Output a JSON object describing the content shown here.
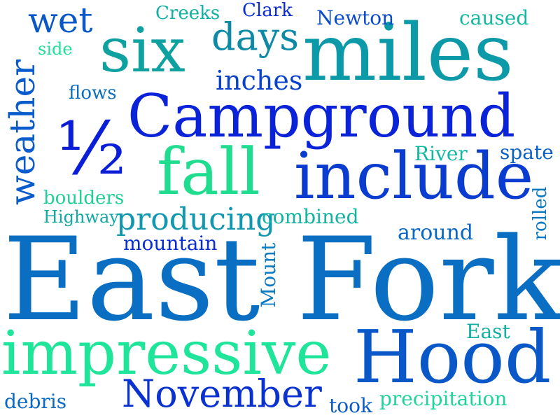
{
  "words": {
    "east_fork": {
      "text": "East Fork",
      "color": "#0a6fc2"
    },
    "impressive": {
      "text": "impressive",
      "color": "#1ee59a"
    },
    "hood": {
      "text": "Hood",
      "color": "#0a58c8"
    },
    "campground": {
      "text": "Campground",
      "color": "#0a22d8"
    },
    "miles": {
      "text": "miles",
      "color": "#0d9aa8"
    },
    "six": {
      "text": "six",
      "color": "#0fa0a0"
    },
    "include": {
      "text": "include",
      "color": "#0a3ccf"
    },
    "fall": {
      "text": "fall",
      "color": "#1fdc8e"
    },
    "half": {
      "text": "½",
      "color": "#0a1ed8"
    },
    "november": {
      "text": "November",
      "color": "#0a32d0"
    },
    "weather": {
      "text": "weather",
      "color": "#0a5ccc"
    },
    "days": {
      "text": "days",
      "color": "#0f8aa6"
    },
    "wet": {
      "text": "wet",
      "color": "#0a58c8"
    },
    "producing": {
      "text": "producing",
      "color": "#1298ae"
    },
    "inches": {
      "text": "inches",
      "color": "#0a42cc"
    },
    "creeks": {
      "text": "Creeks",
      "color": "#12b0a4"
    },
    "clark": {
      "text": "Clark",
      "color": "#0a2cd2"
    },
    "newton": {
      "text": "Newton",
      "color": "#0a4ccc"
    },
    "caused": {
      "text": "caused",
      "color": "#12b8a0"
    },
    "side": {
      "text": "side",
      "color": "#20e09a"
    },
    "flows": {
      "text": "flows",
      "color": "#0a6ec4"
    },
    "river": {
      "text": "River",
      "color": "#12b8a0"
    },
    "spate": {
      "text": "spate",
      "color": "#0a62c6"
    },
    "boulders": {
      "text": "boulders",
      "color": "#1fcf96"
    },
    "highway": {
      "text": "Highway",
      "color": "#12a8a6"
    },
    "combined": {
      "text": "combined",
      "color": "#12b4a0"
    },
    "mountain": {
      "text": "mountain",
      "color": "#0a2ed2"
    },
    "mount": {
      "text": "Mount",
      "color": "#0a7abf"
    },
    "around": {
      "text": "around",
      "color": "#0a68c6"
    },
    "rolled": {
      "text": "rolled",
      "color": "#0a78c0"
    },
    "east": {
      "text": "East",
      "color": "#12b0a2"
    },
    "debris": {
      "text": "debris",
      "color": "#0a6ac4"
    },
    "took": {
      "text": "took",
      "color": "#0a5ac8"
    },
    "precipitation": {
      "text": "precipitation",
      "color": "#1fd49a"
    }
  }
}
